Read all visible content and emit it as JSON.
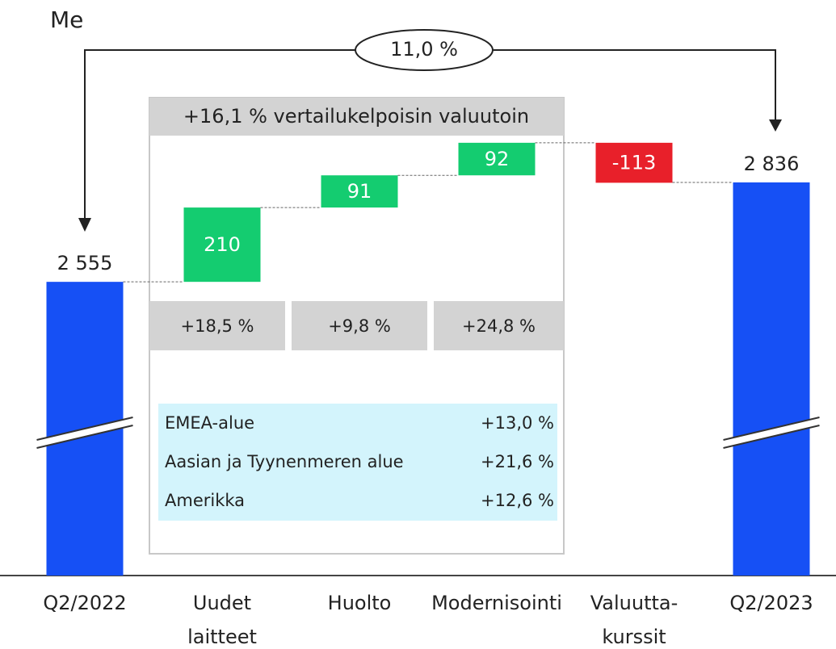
{
  "chart_data": {
    "type": "waterfall",
    "unit": "Me",
    "total_change": "11,0 %",
    "comparable_note": "+16,1 % vertailukelpoisin valuutoin",
    "categories": [
      [
        "Q2/2022"
      ],
      [
        "Uudet",
        "laitteet"
      ],
      [
        "Huolto"
      ],
      [
        "Modernisointi"
      ],
      [
        "Valuutta-",
        "kurssit"
      ],
      [
        "Q2/2023"
      ]
    ],
    "values": [
      2555,
      210,
      91,
      92,
      -113,
      2836
    ],
    "value_labels": [
      "2 555",
      "210",
      "91",
      "92",
      "-113",
      "2 836"
    ],
    "kinds": [
      "total",
      "delta",
      "delta",
      "delta",
      "delta",
      "total"
    ],
    "colors": {
      "total": "#1650f5",
      "increase": "#14cc70",
      "decrease": "#e8202a"
    },
    "growth": [
      "+18,5 %",
      "+9,8 %",
      "+24,8 %"
    ],
    "regions": [
      [
        "EMEA-alue",
        "+13,0 %"
      ],
      [
        "Aasian ja Tyynenmeren alue",
        "+21,6 %"
      ],
      [
        "Amerikka",
        "+12,6 %"
      ]
    ],
    "ylim": [
      1725,
      2950
    ]
  }
}
